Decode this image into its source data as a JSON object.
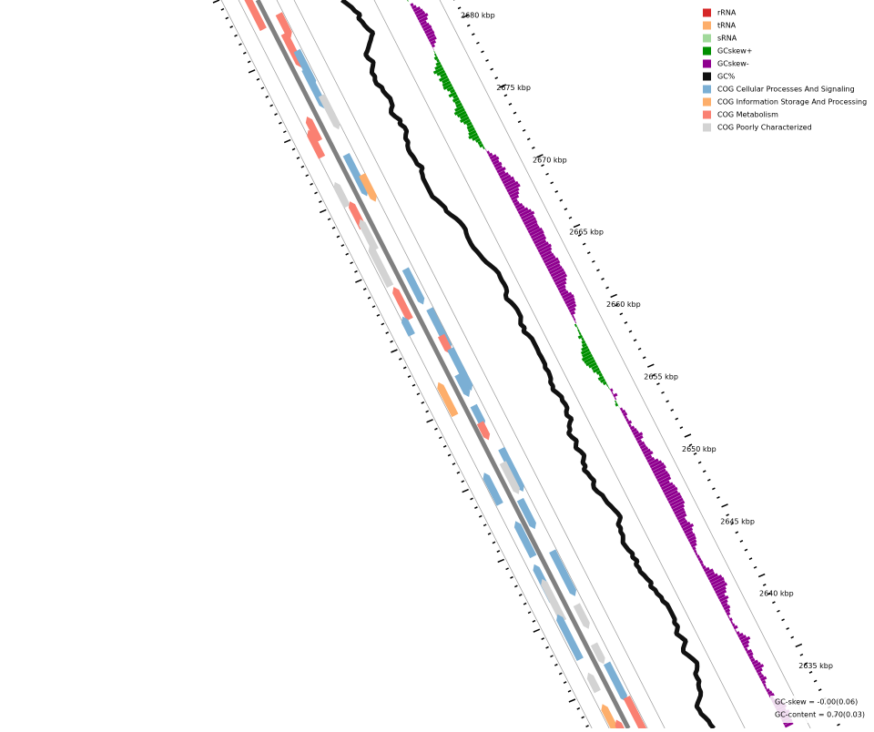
{
  "legend": [
    {
      "label": "rRNA",
      "color": "#d62728"
    },
    {
      "label": "tRNA",
      "color": "#fdae6b"
    },
    {
      "label": "sRNA",
      "color": "#a1d99b"
    },
    {
      "label": "GCskew+",
      "color": "#008f00"
    },
    {
      "label": "GCskew-",
      "color": "#8f008f"
    },
    {
      "label": "GC%",
      "color": "#111111"
    },
    {
      "label": "COG Cellular Processes And Signaling",
      "color": "#7bafd4"
    },
    {
      "label": "COG Information Storage And Processing",
      "color": "#fdae6b"
    },
    {
      "label": "COG Metabolism",
      "color": "#fa8072"
    },
    {
      "label": "COG Poorly Characterized",
      "color": "#d3d3d3"
    }
  ],
  "ruler_labels": [
    "2680 kbp",
    "2675 kbp",
    "2670 kbp",
    "2665 kbp",
    "2660 kbp",
    "2655 kbp",
    "2650 kbp",
    "2645 kbp",
    "2640 kbp",
    "2635 kbp"
  ],
  "stats": [
    "GC-skew = -0.00(0.06)",
    "GC-content = 0.70(0.03)"
  ]
}
